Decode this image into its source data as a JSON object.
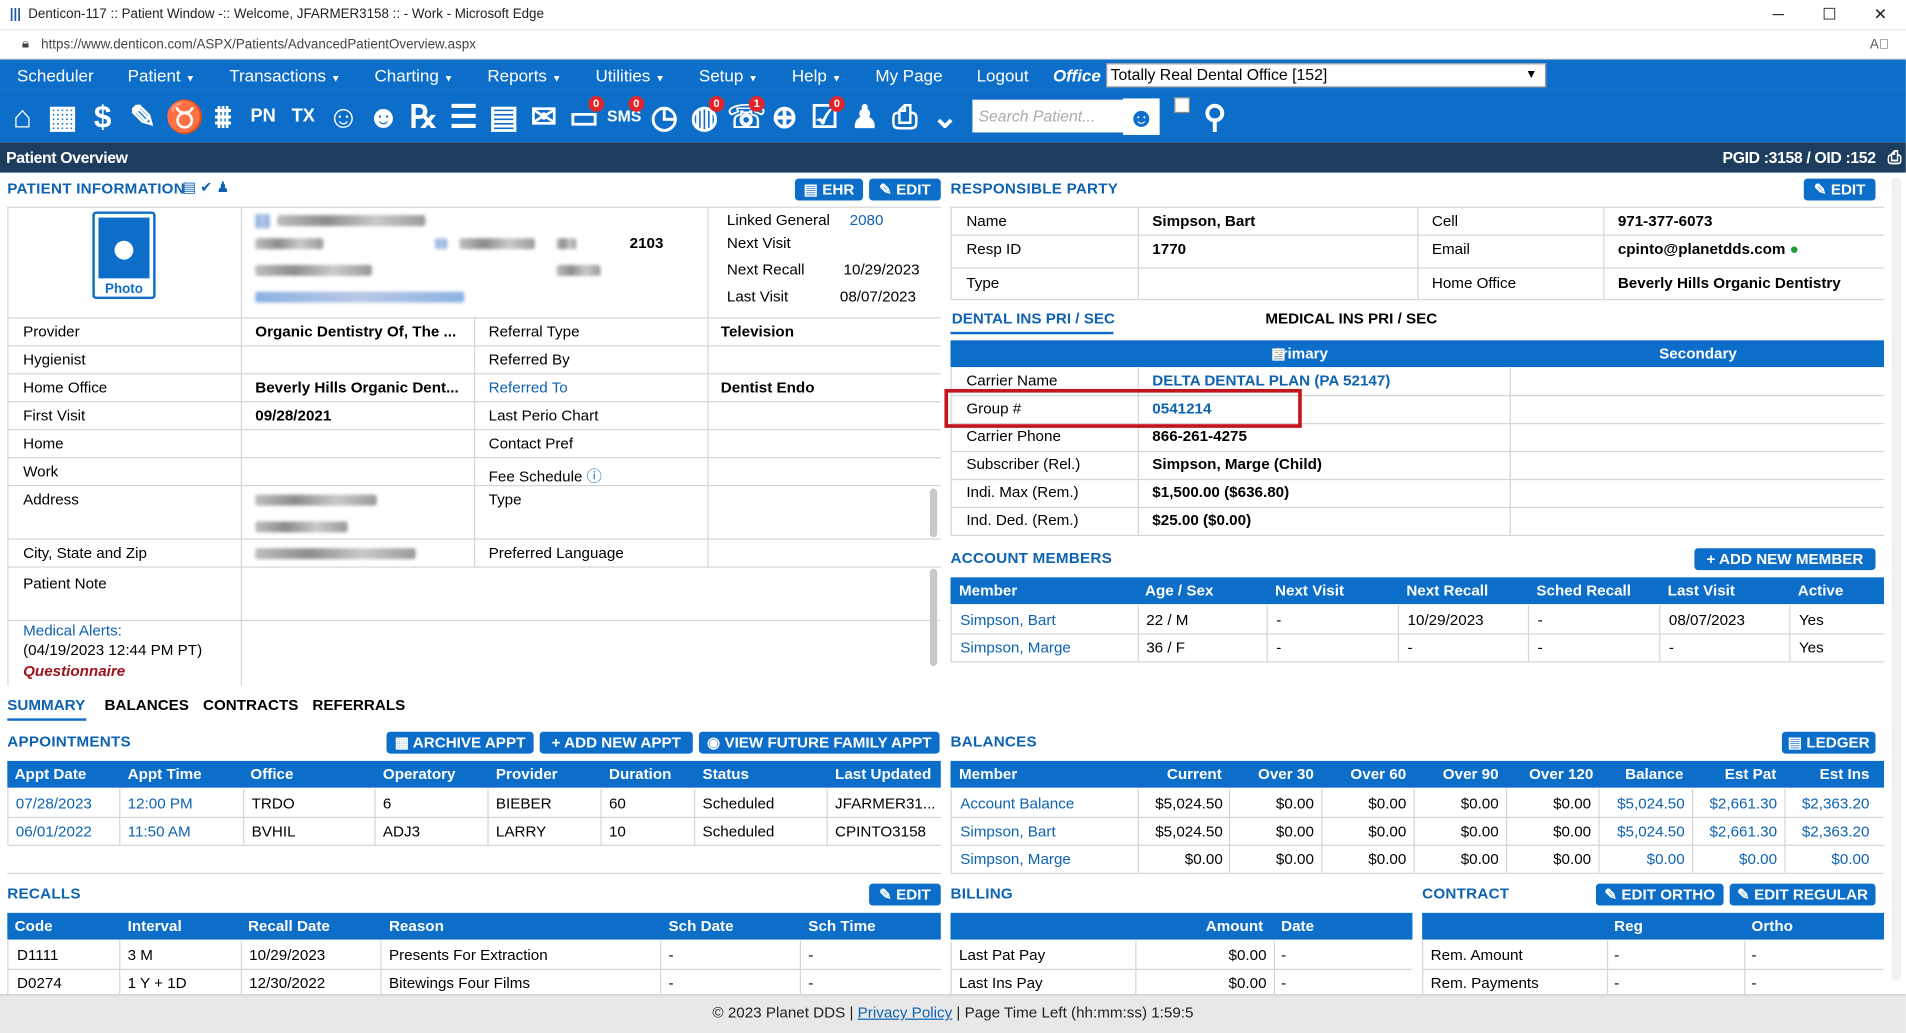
{
  "browser": {
    "title": "Denticon-117 :: Patient Window -:: Welcome, JFARMER3158 :: - Work - Microsoft Edge",
    "url": "https://www.denticon.com/ASPX/Patients/AdvancedPatientOverview.aspx"
  },
  "menu": {
    "items": [
      "Scheduler",
      "Patient",
      "Transactions",
      "Charting",
      "Reports",
      "Utilities",
      "Setup",
      "Help",
      "My Page",
      "Logout"
    ],
    "office_label": "Office",
    "office_value": "Totally Real Dental Office [152]"
  },
  "toolbar": {
    "search_placeholder": "Search Patient...",
    "badges": {
      "messages": "0",
      "sms": "0",
      "globe": "0",
      "recall": "1",
      "forms": "0"
    },
    "pn": "PN",
    "tx": "TX"
  },
  "overview": {
    "title": "Patient Overview",
    "ids": "PGID :3158  /  OID :152"
  },
  "patient_info": {
    "header": "PATIENT INFORMATION",
    "ehr_btn": "EHR",
    "edit_btn": "EDIT",
    "photo": "Photo",
    "code": "2103",
    "linked_general_label": "Linked General",
    "linked_general_value": "2080",
    "next_visit_label": "Next Visit",
    "next_visit_value": "",
    "next_recall_label": "Next Recall",
    "next_recall_value": "10/29/2023",
    "last_visit_label": "Last Visit",
    "last_visit_value": "08/07/2023",
    "provider_label": "Provider",
    "provider_value": "Organic Dentistry Of, The ...",
    "referral_type_label": "Referral Type",
    "referral_type_value": "Television",
    "hygienist_label": "Hygienist",
    "referred_by_label": "Referred By",
    "home_office_label": "Home Office",
    "home_office_value": "Beverly Hills Organic Dent...",
    "referred_to_label": "Referred To",
    "referred_to_value": "Dentist Endo",
    "first_visit_label": "First Visit",
    "first_visit_value": "09/28/2021",
    "last_perio_label": "Last Perio Chart",
    "home_label": "Home",
    "contact_pref_label": "Contact Pref",
    "work_label": "Work",
    "fee_schedule_label": "Fee Schedule",
    "address_label": "Address",
    "type_label": "Type",
    "city_label": "City, State and Zip",
    "preferred_language_label": "Preferred Language",
    "patient_note_label": "Patient Note",
    "medical_alerts_label": "Medical Alerts:",
    "medical_alerts_date": "(04/19/2023 12:44 PM PT)",
    "questionnaire": "Questionnaire"
  },
  "responsible": {
    "header": "RESPONSIBLE PARTY",
    "edit_btn": "EDIT",
    "name_label": "Name",
    "name_value": "Simpson, Bart",
    "cell_label": "Cell",
    "cell_value": "971-377-6073",
    "resp_id_label": "Resp ID",
    "resp_id_value": "1770",
    "email_label": "Email",
    "email_value": "cpinto@planetdds.com",
    "type_label": "Type",
    "home_office_label": "Home Office",
    "home_office_value": "Beverly Hills Organic Dentistry"
  },
  "insurance": {
    "tab_dental": "DENTAL INS PRI / SEC",
    "tab_medical": "MEDICAL INS PRI / SEC",
    "primary": "Primary",
    "secondary": "Secondary",
    "carrier_name_label": "Carrier Name",
    "carrier_name_value": "DELTA DENTAL PLAN (PA 52147)",
    "group_label": "Group #",
    "group_value": "0541214",
    "carrier_phone_label": "Carrier Phone",
    "carrier_phone_value": "866-261-4275",
    "subscriber_label": "Subscriber (Rel.)",
    "subscriber_value": "Simpson, Marge (Child)",
    "indi_max_label": "Indi. Max (Rem.)",
    "indi_max_value": "$1,500.00 ($636.80)",
    "ind_ded_label": "Ind. Ded. (Rem.)",
    "ind_ded_value": "$25.00 ($0.00)"
  },
  "members": {
    "header": "ACCOUNT MEMBERS",
    "add_btn": "ADD NEW MEMBER",
    "columns": [
      "Member",
      "Age / Sex",
      "Next Visit",
      "Next Recall",
      "Sched Recall",
      "Last Visit",
      "Active"
    ],
    "rows": [
      [
        "Simpson, Bart",
        "22 / M",
        "-",
        "10/29/2023",
        "-",
        "08/07/2023",
        "Yes"
      ],
      [
        "Simpson, Marge",
        "36 / F",
        "-",
        "-",
        "-",
        "-",
        "Yes"
      ]
    ]
  },
  "tabs": [
    "SUMMARY",
    "BALANCES",
    "CONTRACTS",
    "REFERRALS"
  ],
  "appointments": {
    "header": "APPOINTMENTS",
    "archive_btn": "ARCHIVE APPT",
    "add_btn": "ADD NEW APPT",
    "future_btn": "VIEW FUTURE FAMILY APPT",
    "columns": [
      "Appt Date",
      "Appt Time",
      "Office",
      "Operatory",
      "Provider",
      "Duration",
      "Status",
      "Last Updated"
    ],
    "rows": [
      [
        "07/28/2023",
        "12:00 PM",
        "TRDO",
        "6",
        "BIEBER",
        "60",
        "Scheduled",
        "JFARMER31..."
      ],
      [
        "06/01/2022",
        "11:50 AM",
        "BVHIL",
        "ADJ3",
        "LARRY",
        "10",
        "Scheduled",
        "CPINTO3158"
      ]
    ]
  },
  "balances": {
    "header": "BALANCES",
    "ledger_btn": "LEDGER",
    "columns": [
      "Member",
      "Current",
      "Over 30",
      "Over 60",
      "Over 90",
      "Over 120",
      "Balance",
      "Est Pat",
      "Est Ins"
    ],
    "rows": [
      [
        "Account Balance",
        "$5,024.50",
        "$0.00",
        "$0.00",
        "$0.00",
        "$0.00",
        "$5,024.50",
        "$2,661.30",
        "$2,363.20"
      ],
      [
        "Simpson, Bart",
        "$5,024.50",
        "$0.00",
        "$0.00",
        "$0.00",
        "$0.00",
        "$5,024.50",
        "$2,661.30",
        "$2,363.20"
      ],
      [
        "Simpson, Marge",
        "$0.00",
        "$0.00",
        "$0.00",
        "$0.00",
        "$0.00",
        "$0.00",
        "$0.00",
        "$0.00"
      ]
    ]
  },
  "recalls": {
    "header": "RECALLS",
    "edit_btn": "EDIT",
    "columns": [
      "Code",
      "Interval",
      "Recall Date",
      "Reason",
      "Sch Date",
      "Sch Time"
    ],
    "rows": [
      [
        "D1111",
        "3 M",
        "10/29/2023",
        "Presents For Extraction",
        "-",
        "-"
      ],
      [
        "D0274",
        "1 Y + 1D",
        "12/30/2022",
        "Bitewings Four Films",
        "-",
        "-"
      ]
    ]
  },
  "billing": {
    "header": "BILLING",
    "columns": [
      "Amount",
      "Date"
    ],
    "rows": [
      [
        "Last Pat Pay",
        "$0.00",
        "-"
      ],
      [
        "Last Ins Pay",
        "$0.00",
        "-"
      ]
    ]
  },
  "contract": {
    "header": "CONTRACT",
    "edit_ortho_btn": "EDIT ORTHO",
    "edit_regular_btn": "EDIT REGULAR",
    "columns": [
      "Reg",
      "Ortho"
    ],
    "rows": [
      [
        "Rem. Amount",
        "-",
        "-"
      ],
      [
        "Rem. Payments",
        "-",
        "-"
      ]
    ]
  },
  "footer": {
    "copyright": "© 2023 Planet DDS",
    "privacy": "Privacy Policy",
    "time_left": "Page Time Left (hh:mm:ss) 1:59:5"
  },
  "colors": {
    "primary": "#0c6ec9",
    "nav_dark": "#1c3d5e",
    "highlight_box": "#c3161c",
    "link": "#0d62b2"
  }
}
